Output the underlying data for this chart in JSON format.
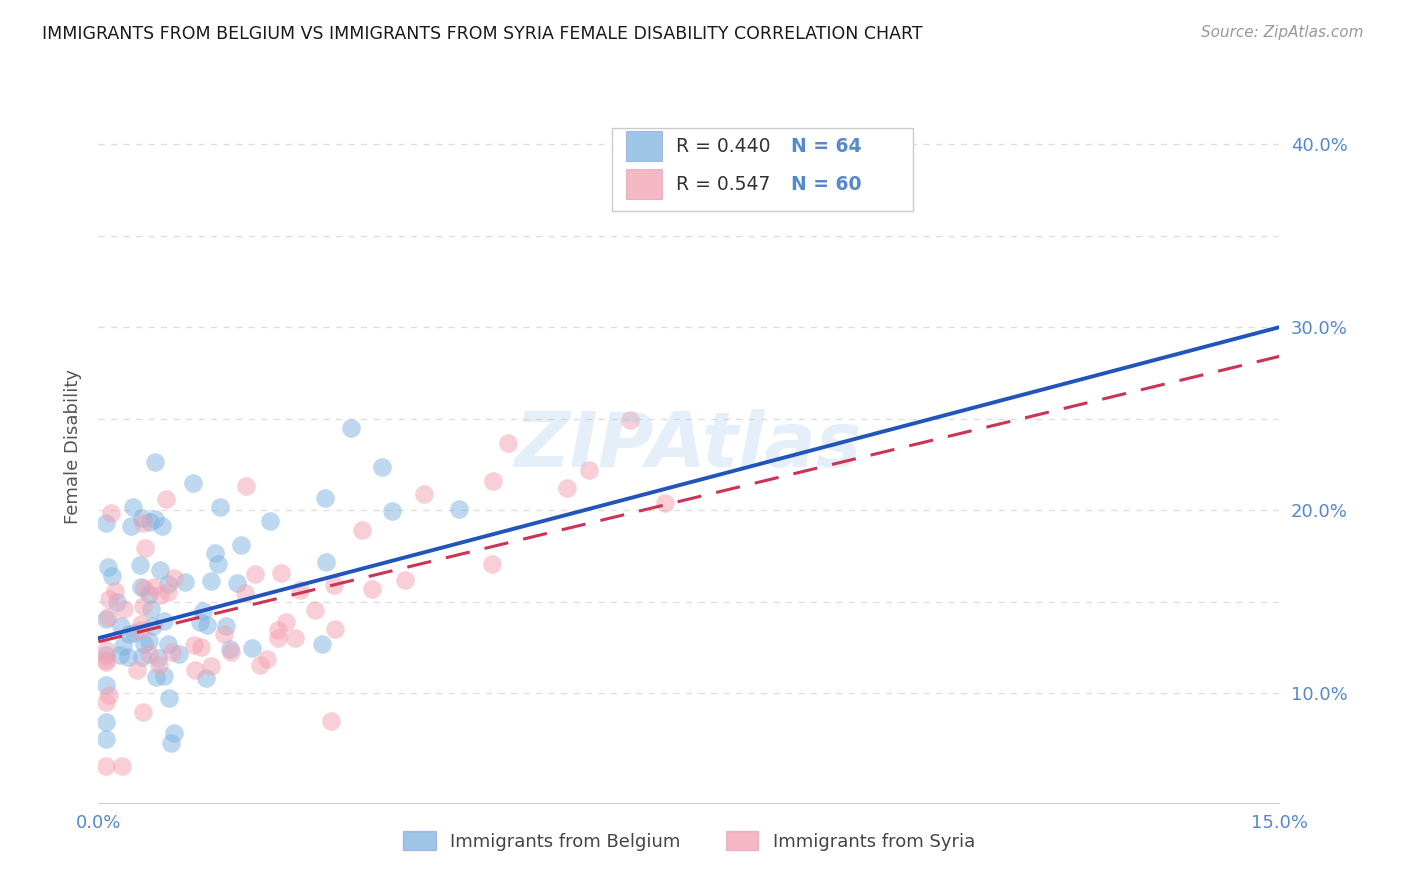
{
  "title": "IMMIGRANTS FROM BELGIUM VS IMMIGRANTS FROM SYRIA FEMALE DISABILITY CORRELATION CHART",
  "source": "Source: ZipAtlas.com",
  "ylabel": "Female Disability",
  "xlim": [
    0.0,
    0.15
  ],
  "ylim": [
    0.04,
    0.43
  ],
  "xticks": [
    0.0,
    0.03,
    0.06,
    0.09,
    0.12,
    0.15
  ],
  "xticklabels": [
    "0.0%",
    "",
    "",
    "",
    "",
    "15.0%"
  ],
  "ytick_positions": [
    0.1,
    0.15,
    0.2,
    0.25,
    0.3,
    0.35,
    0.4
  ],
  "ytick_right_labels": [
    "10.0%",
    "",
    "20.0%",
    "",
    "30.0%",
    "",
    "40.0%"
  ],
  "r_belgium": 0.44,
  "n_belgium": 64,
  "r_syria": 0.547,
  "n_syria": 60,
  "label_belgium": "Immigrants from Belgium",
  "label_syria": "Immigrants from Syria",
  "color_belgium": "#7EB3E0",
  "color_syria": "#F4A0B0",
  "line_color_belgium": "#2255BB",
  "line_color_syria": "#CC3355",
  "line_intercept_belgium": 0.13,
  "line_slope_belgium": 1.133,
  "line_intercept_syria": 0.128,
  "line_slope_syria": 1.04,
  "watermark": "ZIPAtlas",
  "watermark_color": "#AACCEE",
  "title_color": "#1a1a1a",
  "source_color": "#999999",
  "axis_color": "#5588CC",
  "grid_color": "#DDDDDD",
  "legend_box_color": "#EEEEEE"
}
